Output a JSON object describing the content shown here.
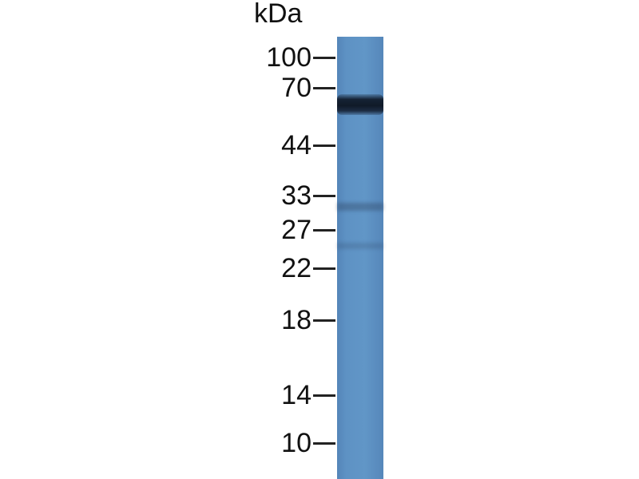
{
  "unit_label": "kDa",
  "markers": [
    "100",
    "70",
    "44",
    "33",
    "27",
    "22",
    "18",
    "14",
    "10"
  ],
  "colors": {
    "lane": "#5e92c4",
    "band": "#121d2c",
    "text": "#111111"
  }
}
